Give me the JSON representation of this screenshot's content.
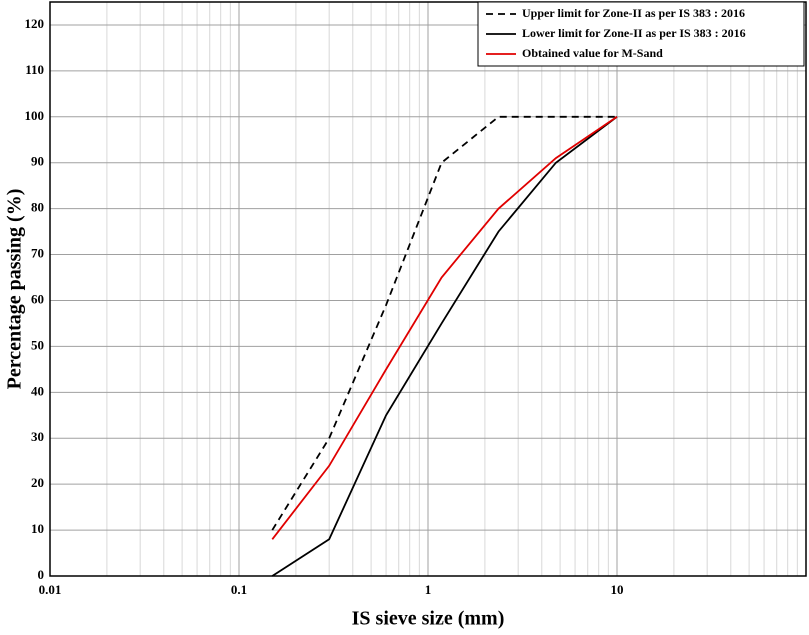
{
  "chart_data": {
    "type": "line",
    "x_label": "IS sieve size (mm)",
    "y_label": "Percentage passing (%)",
    "xscale": "log",
    "xlim": [
      0.01,
      100
    ],
    "xticks": [
      0.01,
      0.1,
      1,
      10
    ],
    "ylim": [
      0,
      125
    ],
    "yticks": [
      0,
      10,
      20,
      30,
      40,
      50,
      60,
      70,
      80,
      90,
      100,
      110,
      120
    ],
    "grid": true,
    "legend": "upper right",
    "x": [
      0.15,
      0.3,
      0.6,
      1.18,
      2.36,
      4.75,
      10
    ],
    "series": [
      {
        "name": "Upper limit for Zone-II as per IS 383 : 2016",
        "color": "#000000",
        "dash": "dashed",
        "values": [
          10,
          30,
          59,
          90,
          100,
          100,
          100
        ]
      },
      {
        "name": "Lower limit for Zone-II as per IS 383 : 2016",
        "color": "#000000",
        "dash": "solid",
        "values": [
          0,
          8,
          35,
          55,
          75,
          90,
          100
        ]
      },
      {
        "name": "Obtained value for M-Sand",
        "color": "#e00000",
        "dash": "solid",
        "values": [
          8,
          24,
          45,
          65,
          80,
          91,
          100
        ]
      }
    ]
  }
}
